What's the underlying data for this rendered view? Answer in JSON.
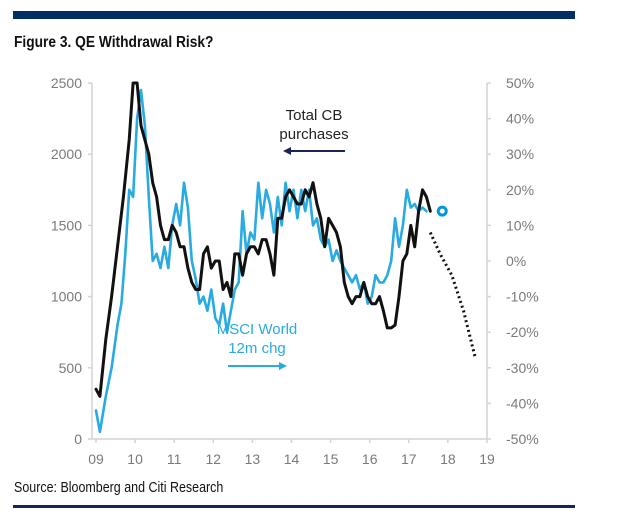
{
  "figure": {
    "title": "Figure 3. QE Withdrawal Risk?",
    "source": "Source: Bloomberg and Citi Research"
  },
  "colors": {
    "header_rule": "#003063",
    "footer_rule": "#1a2557",
    "cb_series": "#111111",
    "msci_series": "#29abe2",
    "axis_text": "#7a7a7a"
  },
  "chart_data": {
    "type": "line",
    "title": "Figure 3. QE Withdrawal Risk?",
    "xlabel": "",
    "ylabel_left": "",
    "ylabel_right": "",
    "x_ticks": [
      "09",
      "10",
      "11",
      "12",
      "13",
      "14",
      "15",
      "16",
      "17",
      "18",
      "19"
    ],
    "xlim": [
      2009,
      2019
    ],
    "y_left": {
      "ticks": [
        "0",
        "500",
        "1000",
        "1500",
        "2000",
        "2500"
      ],
      "ylim": [
        0,
        2500
      ]
    },
    "y_right": {
      "ticks": [
        "-50%",
        "-40%",
        "-30%",
        "-20%",
        "-10%",
        "0%",
        "10%",
        "20%",
        "30%",
        "40%",
        "50%"
      ],
      "ylim": [
        -50,
        50
      ]
    },
    "grid": false,
    "annotations": {
      "cb_label": [
        "Total CB",
        "purchases"
      ],
      "cb_arrow": "left",
      "msci_label": [
        "MSCI World",
        "12m chg"
      ],
      "msci_arrow": "right"
    },
    "series": [
      {
        "name": "Total CB purchases",
        "axis": "left",
        "style": "solid",
        "x": [
          2009.0,
          2009.1,
          2009.25,
          2009.4,
          2009.55,
          2009.7,
          2009.85,
          2009.95,
          2010.05,
          2010.15,
          2010.25,
          2010.35,
          2010.45,
          2010.55,
          2010.65,
          2010.75,
          2010.85,
          2010.95,
          2011.05,
          2011.15,
          2011.25,
          2011.35,
          2011.45,
          2011.55,
          2011.65,
          2011.75,
          2011.85,
          2011.95,
          2012.05,
          2012.15,
          2012.25,
          2012.35,
          2012.45,
          2012.55,
          2012.65,
          2012.75,
          2012.85,
          2012.95,
          2013.05,
          2013.15,
          2013.25,
          2013.35,
          2013.45,
          2013.55,
          2013.65,
          2013.75,
          2013.85,
          2013.95,
          2014.05,
          2014.15,
          2014.25,
          2014.35,
          2014.45,
          2014.55,
          2014.65,
          2014.75,
          2014.85,
          2014.95,
          2015.05,
          2015.15,
          2015.25,
          2015.35,
          2015.45,
          2015.55,
          2015.65,
          2015.75,
          2015.85,
          2015.95,
          2016.05,
          2016.15,
          2016.25,
          2016.35,
          2016.45,
          2016.55,
          2016.65,
          2016.75,
          2016.85,
          2016.95,
          2017.05,
          2017.15,
          2017.25,
          2017.35,
          2017.45,
          2017.55
        ],
        "values": [
          350,
          300,
          700,
          1000,
          1350,
          1700,
          2100,
          2500,
          2500,
          2200,
          2100,
          2000,
          1800,
          1700,
          1500,
          1400,
          1400,
          1500,
          1450,
          1350,
          1350,
          1200,
          1100,
          1050,
          1050,
          1300,
          1350,
          1200,
          1250,
          1250,
          1050,
          1100,
          1000,
          1300,
          1300,
          1150,
          1300,
          1350,
          1350,
          1300,
          1400,
          1400,
          1300,
          1150,
          1550,
          1550,
          1700,
          1750,
          1700,
          1650,
          1650,
          1750,
          1700,
          1800,
          1650,
          1550,
          1350,
          1550,
          1500,
          1450,
          1350,
          1100,
          1000,
          950,
          1000,
          1000,
          1100,
          1000,
          950,
          950,
          1000,
          900,
          780,
          780,
          800,
          1000,
          1250,
          1300,
          1500,
          1350,
          1600,
          1750,
          1700,
          1600
        ],
        "projection": {
          "style": "dotted",
          "x": [
            2017.55,
            2017.8,
            2018.1,
            2018.4,
            2018.7
          ],
          "values": [
            1450,
            1300,
            1150,
            900,
            570
          ]
        }
      },
      {
        "name": "MSCI World 12m chg",
        "axis": "right",
        "style": "solid",
        "x": [
          2009.0,
          2009.1,
          2009.25,
          2009.4,
          2009.55,
          2009.65,
          2009.75,
          2009.85,
          2009.95,
          2010.05,
          2010.15,
          2010.25,
          2010.35,
          2010.45,
          2010.55,
          2010.65,
          2010.75,
          2010.85,
          2010.95,
          2011.05,
          2011.15,
          2011.25,
          2011.35,
          2011.45,
          2011.55,
          2011.65,
          2011.75,
          2011.85,
          2011.95,
          2012.05,
          2012.15,
          2012.25,
          2012.35,
          2012.45,
          2012.55,
          2012.65,
          2012.75,
          2012.85,
          2012.95,
          2013.05,
          2013.15,
          2013.25,
          2013.35,
          2013.45,
          2013.55,
          2013.65,
          2013.75,
          2013.85,
          2013.95,
          2014.05,
          2014.15,
          2014.25,
          2014.35,
          2014.45,
          2014.55,
          2014.65,
          2014.75,
          2014.85,
          2014.95,
          2015.05,
          2015.15,
          2015.25,
          2015.35,
          2015.45,
          2015.55,
          2015.65,
          2015.75,
          2015.85,
          2015.95,
          2016.05,
          2016.15,
          2016.25,
          2016.35,
          2016.45,
          2016.55,
          2016.65,
          2016.75,
          2016.85,
          2016.95,
          2017.05,
          2017.15,
          2017.25,
          2017.35,
          2017.45
        ],
        "values": [
          -42,
          -48,
          -38,
          -30,
          -18,
          -12,
          2,
          20,
          18,
          40,
          48,
          38,
          18,
          0,
          2,
          -2,
          4,
          -2,
          10,
          16,
          10,
          22,
          15,
          0,
          -5,
          -12,
          -10,
          -14,
          -8,
          -16,
          -18,
          -12,
          -20,
          -14,
          -8,
          -6,
          14,
          2,
          8,
          6,
          22,
          12,
          20,
          16,
          8,
          18,
          10,
          22,
          14,
          20,
          12,
          20,
          14,
          20,
          10,
          12,
          6,
          4,
          6,
          0,
          3,
          0,
          -2,
          -4,
          -6,
          -4,
          -8,
          -6,
          -12,
          -10,
          -4,
          -6,
          -6,
          -4,
          0,
          12,
          4,
          10,
          20,
          15,
          16,
          14,
          15,
          14
        ]
      }
    ],
    "markers": [
      {
        "name": "open-circle-marker",
        "x": 2017.6,
        "y_right": 14
      }
    ]
  }
}
